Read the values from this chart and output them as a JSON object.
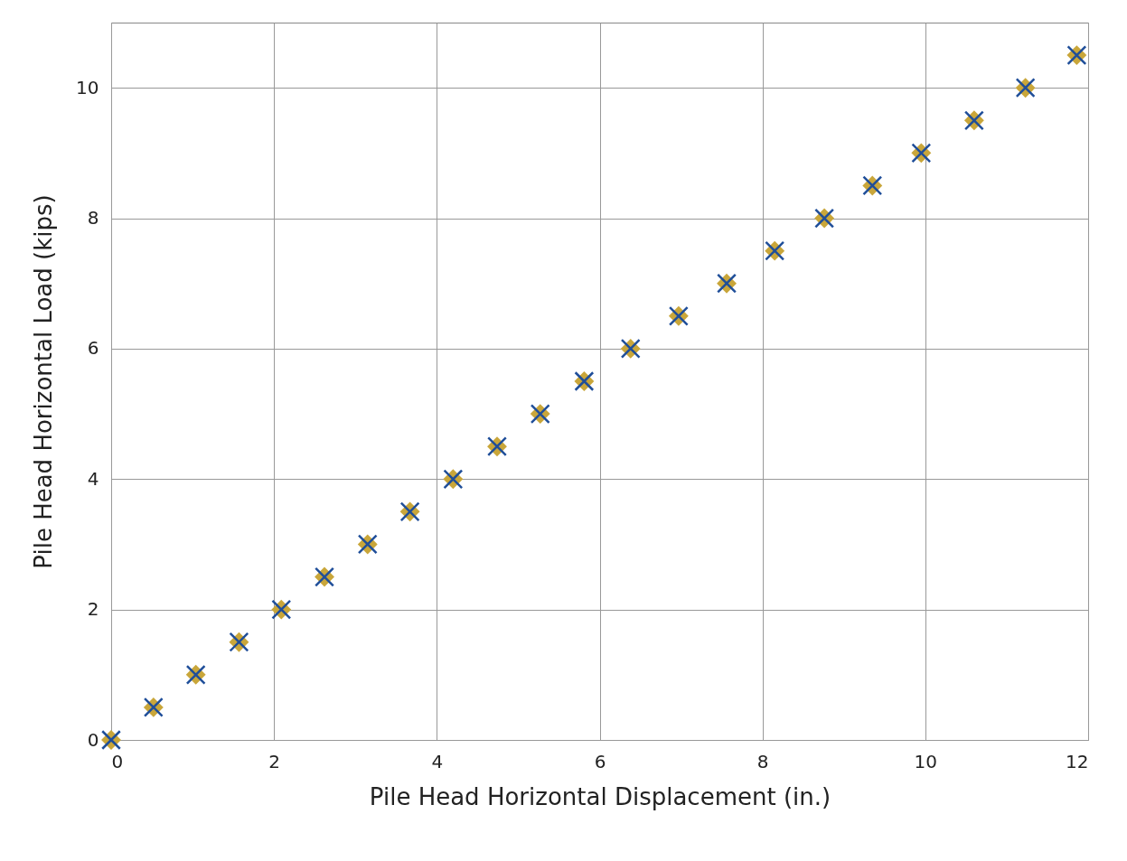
{
  "chart_data": {
    "type": "scatter",
    "xlabel": "Pile Head Horizontal Displacement (in.)",
    "ylabel": "Pile Head Horizontal Load (kips)",
    "x": [
      0,
      0.52,
      1.04,
      1.57,
      2.09,
      2.62,
      3.15,
      3.67,
      4.2,
      4.74,
      5.27,
      5.81,
      6.38,
      6.97,
      7.56,
      8.15,
      8.76,
      9.35,
      9.95,
      10.6,
      11.23,
      11.86
    ],
    "series": [
      {
        "color": "#c9a63a",
        "marker": "diamond",
        "values": [
          0,
          0.5,
          1,
          1.5,
          2,
          2.5,
          3,
          3.5,
          4,
          4.5,
          5,
          5.5,
          6,
          6.5,
          7,
          7.5,
          8,
          8.5,
          9,
          9.5,
          10,
          10.5
        ]
      },
      {
        "color": "#1f4e99",
        "marker": "cross",
        "values": [
          0,
          0.5,
          1,
          1.5,
          2,
          2.5,
          3,
          3.5,
          4,
          4.5,
          5,
          5.5,
          6,
          6.5,
          7,
          7.5,
          8,
          8.5,
          9,
          9.5,
          10,
          10.5
        ]
      }
    ],
    "xlim": [
      0,
      12
    ],
    "xticks": [
      0,
      2,
      4,
      6,
      8,
      10,
      12
    ],
    "ylim": [
      0,
      11
    ],
    "yticks": [
      0,
      2,
      4,
      6,
      8,
      10
    ],
    "grid": true
  }
}
